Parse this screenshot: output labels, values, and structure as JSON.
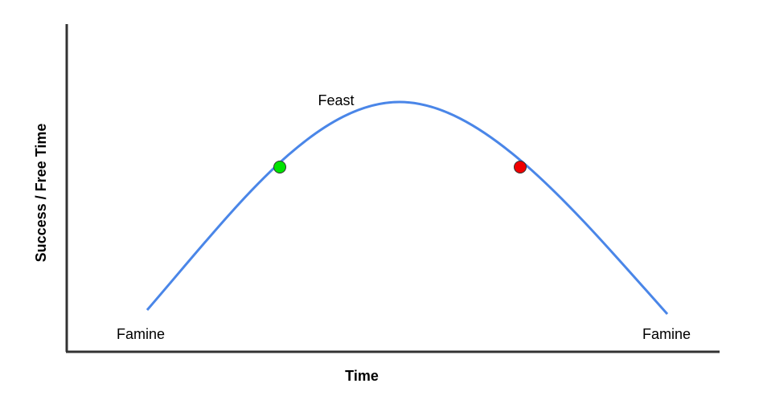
{
  "labels": {
    "peak": "Feast",
    "start": "Famine",
    "end": "Famine"
  },
  "axes": {
    "x": "Time",
    "y": "Success / Free Time"
  }
}
